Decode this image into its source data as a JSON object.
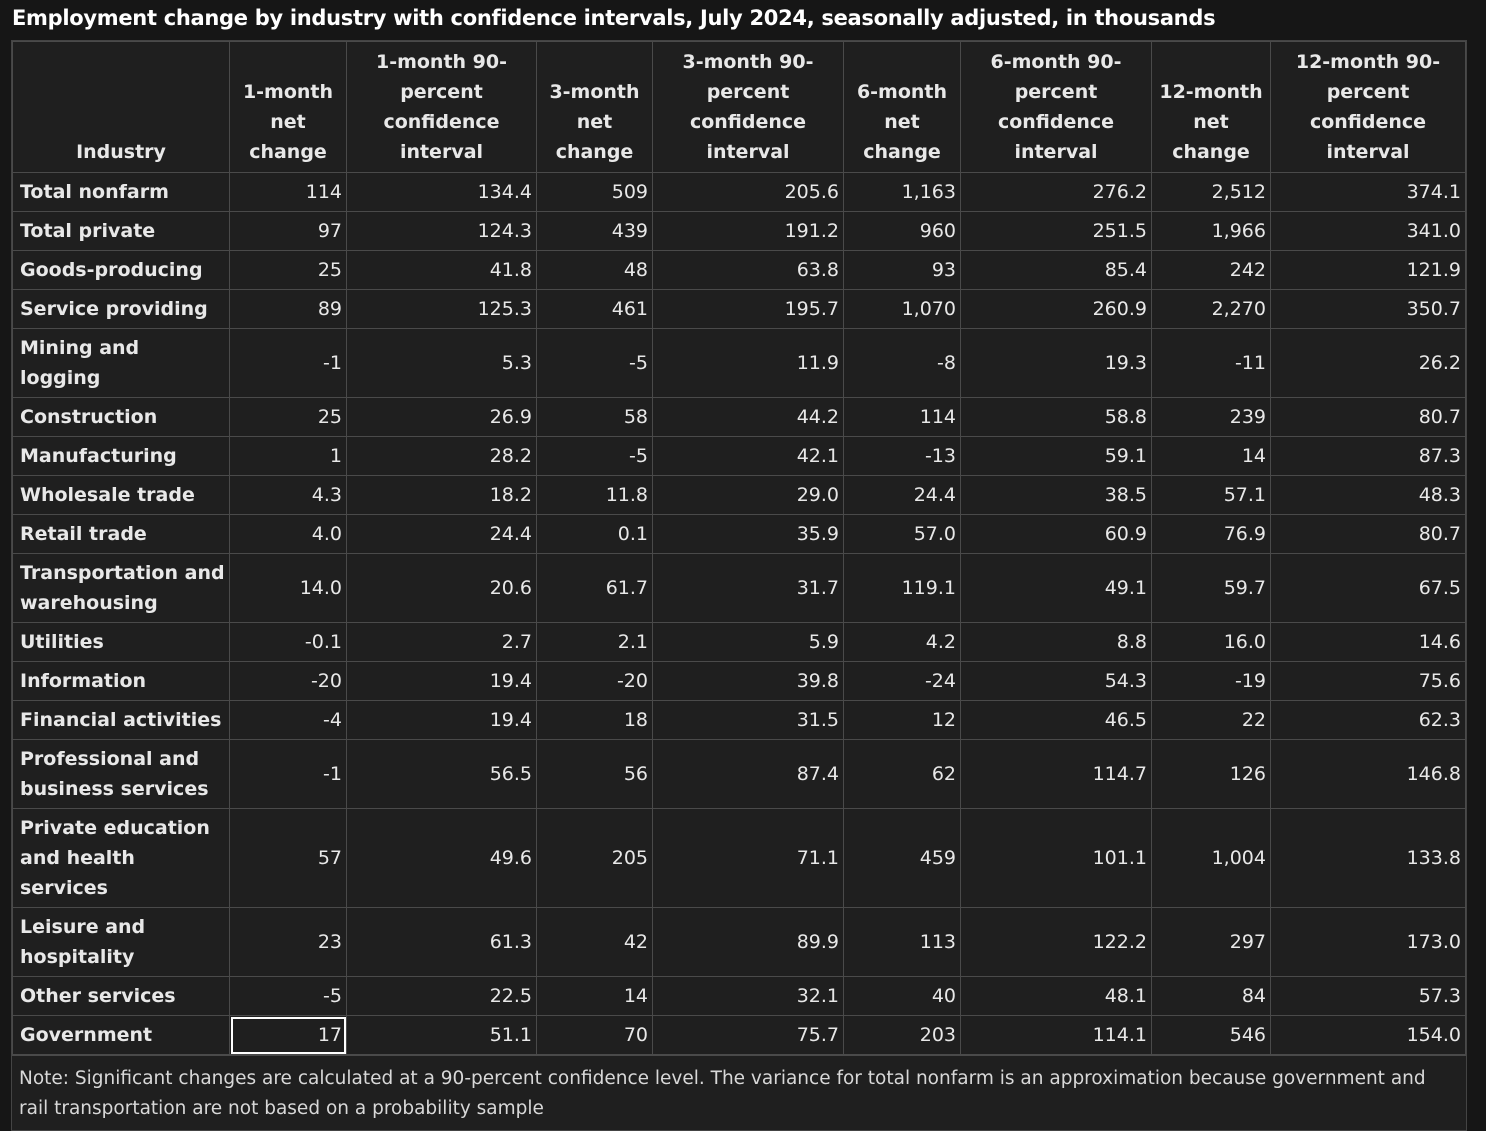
{
  "title": "Employment change by industry with confidence intervals, July 2024, seasonally adjusted, in thousands",
  "table": {
    "columns": [
      "Industry",
      "1-month net change",
      "1-month 90-percent confidence interval",
      "3-month net change",
      "3-month 90-percent confidence interval",
      "6-month net change",
      "6-month 90-percent confidence interval",
      "12-month net change",
      "12-month 90-percent confidence interval"
    ],
    "rows": [
      [
        "Total nonfarm",
        "114",
        "134.4",
        "509",
        "205.6",
        "1,163",
        "276.2",
        "2,512",
        "374.1"
      ],
      [
        "Total private",
        "97",
        "124.3",
        "439",
        "191.2",
        "960",
        "251.5",
        "1,966",
        "341.0"
      ],
      [
        "Goods-producing",
        "25",
        "41.8",
        "48",
        "63.8",
        "93",
        "85.4",
        "242",
        "121.9"
      ],
      [
        "Service providing",
        "89",
        "125.3",
        "461",
        "195.7",
        "1,070",
        "260.9",
        "2,270",
        "350.7"
      ],
      [
        "Mining and logging",
        "-1",
        "5.3",
        "-5",
        "11.9",
        "-8",
        "19.3",
        "-11",
        "26.2"
      ],
      [
        "Construction",
        "25",
        "26.9",
        "58",
        "44.2",
        "114",
        "58.8",
        "239",
        "80.7"
      ],
      [
        "Manufacturing",
        "1",
        "28.2",
        "-5",
        "42.1",
        "-13",
        "59.1",
        "14",
        "87.3"
      ],
      [
        "Wholesale trade",
        "4.3",
        "18.2",
        "11.8",
        "29.0",
        "24.4",
        "38.5",
        "57.1",
        "48.3"
      ],
      [
        "Retail trade",
        "4.0",
        "24.4",
        "0.1",
        "35.9",
        "57.0",
        "60.9",
        "76.9",
        "80.7"
      ],
      [
        "Transportation and warehousing",
        "14.0",
        "20.6",
        "61.7",
        "31.7",
        "119.1",
        "49.1",
        "59.7",
        "67.5"
      ],
      [
        "Utilities",
        "-0.1",
        "2.7",
        "2.1",
        "5.9",
        "4.2",
        "8.8",
        "16.0",
        "14.6"
      ],
      [
        "Information",
        "-20",
        "19.4",
        "-20",
        "39.8",
        "-24",
        "54.3",
        "-19",
        "75.6"
      ],
      [
        "Financial activities",
        "-4",
        "19.4",
        "18",
        "31.5",
        "12",
        "46.5",
        "22",
        "62.3"
      ],
      [
        "Professional and business services",
        "-1",
        "56.5",
        "56",
        "87.4",
        "62",
        "114.7",
        "126",
        "146.8"
      ],
      [
        "Private education and health services",
        "57",
        "49.6",
        "205",
        "71.1",
        "459",
        "101.1",
        "1,004",
        "133.8"
      ],
      [
        "Leisure and hospitality",
        "23",
        "61.3",
        "42",
        "89.9",
        "113",
        "122.2",
        "297",
        "173.0"
      ],
      [
        "Other services",
        "-5",
        "22.5",
        "14",
        "32.1",
        "40",
        "48.1",
        "84",
        "57.3"
      ],
      [
        "Government",
        "17",
        "51.1",
        "70",
        "75.7",
        "203",
        "114.1",
        "546",
        "154.0"
      ]
    ]
  },
  "note": "Note: Significant changes are calculated at a 90-percent confidence level. The variance for total nonfarm is an approximation because government and rail transportation are not based on a probability sample"
}
